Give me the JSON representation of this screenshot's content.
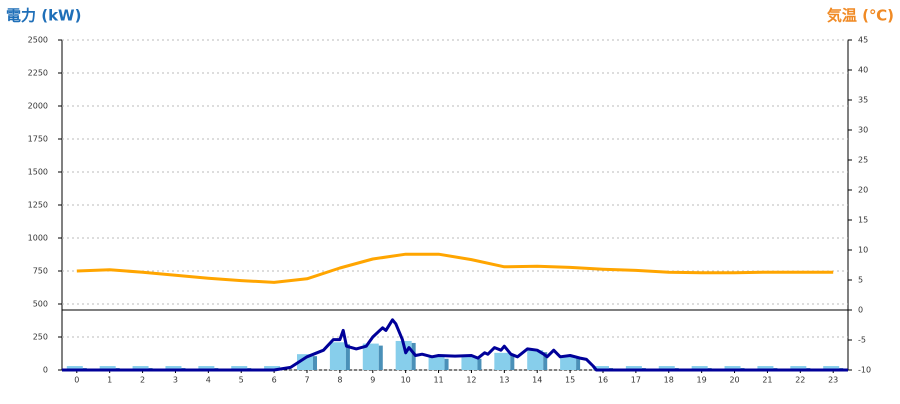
{
  "chart_data": {
    "type": "combo",
    "ylabel": "電力 (kW)",
    "y2label": "気温 (℃)",
    "ylim": [
      0,
      2500
    ],
    "yticks": [
      0,
      250,
      500,
      750,
      1000,
      1250,
      1500,
      1750,
      2000,
      2250,
      2500
    ],
    "y2lim": [
      -10,
      45
    ],
    "y2ticks": [
      -10,
      -5,
      0,
      5,
      10,
      15,
      20,
      25,
      30,
      35,
      40,
      45
    ],
    "xlim": [
      -0.45,
      23.45
    ],
    "xticks": [
      0,
      1,
      2,
      3,
      4,
      5,
      6,
      7,
      8,
      9,
      10,
      11,
      12,
      13,
      14,
      15,
      16,
      17,
      18,
      19,
      20,
      21,
      22,
      23
    ],
    "grid": true,
    "series": [
      {
        "type": "bar",
        "color": "#87ceeb",
        "x": [
          0,
          1,
          2,
          3,
          4,
          5,
          6,
          7,
          8,
          9,
          10,
          11,
          12,
          13,
          14,
          15,
          16,
          17,
          18,
          19,
          20,
          21,
          22,
          23
        ],
        "values": [
          30,
          30,
          30,
          30,
          30,
          30,
          30,
          120,
          210,
          200,
          220,
          100,
          100,
          130,
          150,
          110,
          30,
          30,
          30,
          30,
          30,
          30,
          30,
          30
        ]
      },
      {
        "type": "line",
        "color": "#000099",
        "x": [
          -0.45,
          6,
          6.5,
          7,
          7.5,
          7.8,
          8.0,
          8.1,
          8.2,
          8.5,
          8.8,
          9.0,
          9.3,
          9.4,
          9.6,
          9.7,
          9.9,
          10.0,
          10.1,
          10.3,
          10.5,
          10.8,
          11,
          11.5,
          12,
          12.2,
          12.4,
          12.5,
          12.7,
          12.9,
          13.0,
          13.2,
          13.4,
          13.7,
          14,
          14.2,
          14.3,
          14.5,
          14.7,
          15,
          15.3,
          15.5,
          15.7,
          15.8,
          23.45
        ],
        "values": [
          0,
          0,
          20,
          100,
          150,
          230,
          230,
          300,
          180,
          160,
          180,
          250,
          320,
          300,
          380,
          350,
          230,
          130,
          170,
          110,
          120,
          100,
          110,
          105,
          110,
          90,
          130,
          120,
          170,
          150,
          180,
          120,
          100,
          160,
          150,
          120,
          100,
          150,
          100,
          110,
          90,
          80,
          30,
          0,
          0
        ]
      },
      {
        "type": "line",
        "color": "#ffa500",
        "axis": "y2",
        "x": [
          0,
          1,
          2,
          3,
          4,
          5,
          6,
          7,
          8,
          9,
          10,
          11,
          12,
          13,
          14,
          15,
          16,
          17,
          18,
          19,
          20,
          21,
          22,
          23
        ],
        "values": [
          6.5,
          6.7,
          6.3,
          5.8,
          5.3,
          4.9,
          4.6,
          5.2,
          7.0,
          8.5,
          9.3,
          9.3,
          8.4,
          7.2,
          7.3,
          7.1,
          6.8,
          6.6,
          6.3,
          6.2,
          6.2,
          6.3,
          6.3,
          6.3
        ]
      }
    ]
  }
}
